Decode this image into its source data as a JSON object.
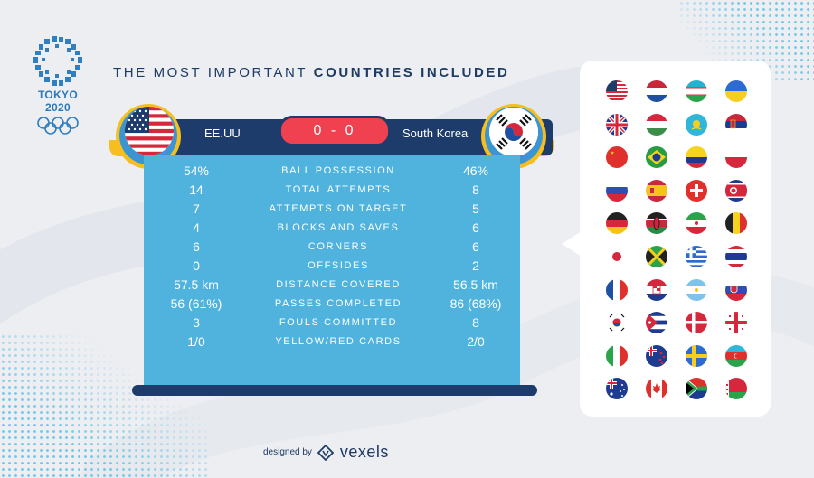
{
  "header": {
    "title_prefix": "THE MOST IMPORTANT",
    "title_emphasis": "COUNTRIES INCLUDED"
  },
  "logo": {
    "text": "TOKYO 2020"
  },
  "match": {
    "team_left": "EE.UU",
    "team_right": "South Korea",
    "score": "0 - 0"
  },
  "stats": [
    {
      "label": "BALL POSSESSION",
      "left": "54%",
      "right": "46%"
    },
    {
      "label": "TOTAL ATTEMPTS",
      "left": "14",
      "right": "8"
    },
    {
      "label": "ATTEMPTS ON TARGET",
      "left": "7",
      "right": "5"
    },
    {
      "label": "BLOCKS AND SAVES",
      "left": "4",
      "right": "6"
    },
    {
      "label": "CORNERS",
      "left": "6",
      "right": "6"
    },
    {
      "label": "OFFSIDES",
      "left": "0",
      "right": "2"
    },
    {
      "label": "DISTANCE COVERED",
      "left": "57.5 km",
      "right": "56.5 km"
    },
    {
      "label": "PASSES COMPLETED",
      "left": "56 (61%)",
      "right": "86 (68%)"
    },
    {
      "label": "FOULS COMMITTED",
      "left": "3",
      "right": "8"
    },
    {
      "label": "YELLOW/RED CARDS",
      "left": "1/0",
      "right": "2/0"
    }
  ],
  "flags": [
    "usa-flag-icon",
    "netherlands-flag-icon",
    "uzbekistan-flag-icon",
    "ukraine-flag-icon",
    "uk-flag-icon",
    "hungary-flag-icon",
    "kazakhstan-flag-icon",
    "serbia-flag-icon",
    "china-flag-icon",
    "brazil-flag-icon",
    "colombia-flag-icon",
    "poland-flag-icon",
    "russia-flag-icon",
    "spain-flag-icon",
    "switzerland-flag-icon",
    "north-korea-flag-icon",
    "germany-flag-icon",
    "kenya-flag-icon",
    "iran-flag-icon",
    "belgium-flag-icon",
    "japan-flag-icon",
    "jamaica-flag-icon",
    "greece-flag-icon",
    "thailand-flag-icon",
    "france-flag-icon",
    "croatia-flag-icon",
    "argentina-flag-icon",
    "slovakia-flag-icon",
    "south-korea-flag-icon",
    "cuba-flag-icon",
    "denmark-flag-icon",
    "georgia-flag-icon",
    "italy-flag-icon",
    "new-zealand-flag-icon",
    "sweden-flag-icon",
    "azerbaijan-flag-icon",
    "australia-flag-icon",
    "canada-flag-icon",
    "south-africa-flag-icon",
    "belarus-flag-icon"
  ],
  "credit": {
    "prefix": "designed by",
    "brand": "vexels"
  },
  "colors": {
    "navy": "#1e3c6b",
    "screen": "#50b3dd",
    "score_red": "#f04150",
    "accent_yellow": "#f6be1e",
    "accent_blue": "#3c95d3",
    "background": "#eceef2"
  }
}
